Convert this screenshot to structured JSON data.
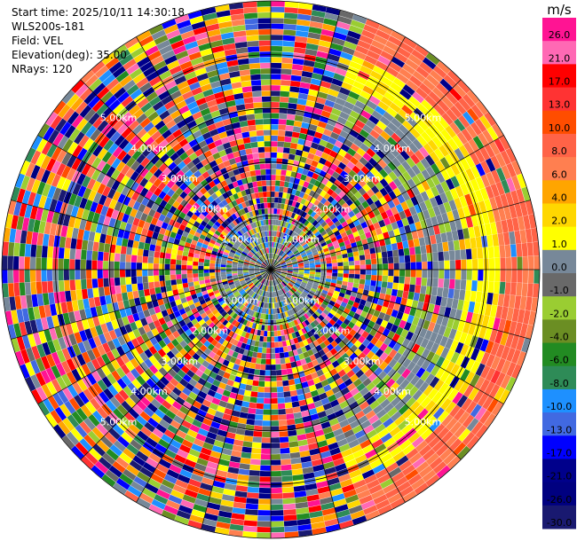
{
  "header": {
    "start_time": "Start time: 2025/10/11 14:30:18",
    "instrument": "WLS200s-181",
    "field": "Field: VEL",
    "elevation": "Elevation(deg): 35.00",
    "nrays": "NRays: 120"
  },
  "chart_data": {
    "type": "heatmap",
    "projection": "polar-ppi",
    "rays": 120,
    "range_ring_labels": [
      "1.00km",
      "2.00km",
      "3.00km",
      "4.00km",
      "5.00km"
    ],
    "range_rings_km": [
      1,
      2,
      3,
      4,
      5
    ],
    "max_range_km": 5.0,
    "colorbar": {
      "unit": "m/s",
      "tick_labels": [
        "26.0",
        "21.0",
        "17.0",
        "13.0",
        "10.0",
        "8.0",
        "6.0",
        "4.0",
        "2.0",
        "1.0",
        "0.0",
        "-1.0",
        "-2.0",
        "-4.0",
        "-6.0",
        "-8.0",
        "-10.0",
        "-13.0",
        "-17.0",
        "-21.0",
        "-26.0",
        "-30.0"
      ],
      "colors": [
        "#ff1493",
        "#ff69b4",
        "#ff0000",
        "#ff3333",
        "#ff4d00",
        "#ff6347",
        "#ff7f50",
        "#ffa500",
        "#ffd700",
        "#ffff00",
        "#778899",
        "#696969",
        "#9acd32",
        "#6b8e23",
        "#228b22",
        "#2e8b57",
        "#1e90ff",
        "#4169e1",
        "#0000ff",
        "#00008b",
        "#000080",
        "#191970"
      ]
    }
  }
}
